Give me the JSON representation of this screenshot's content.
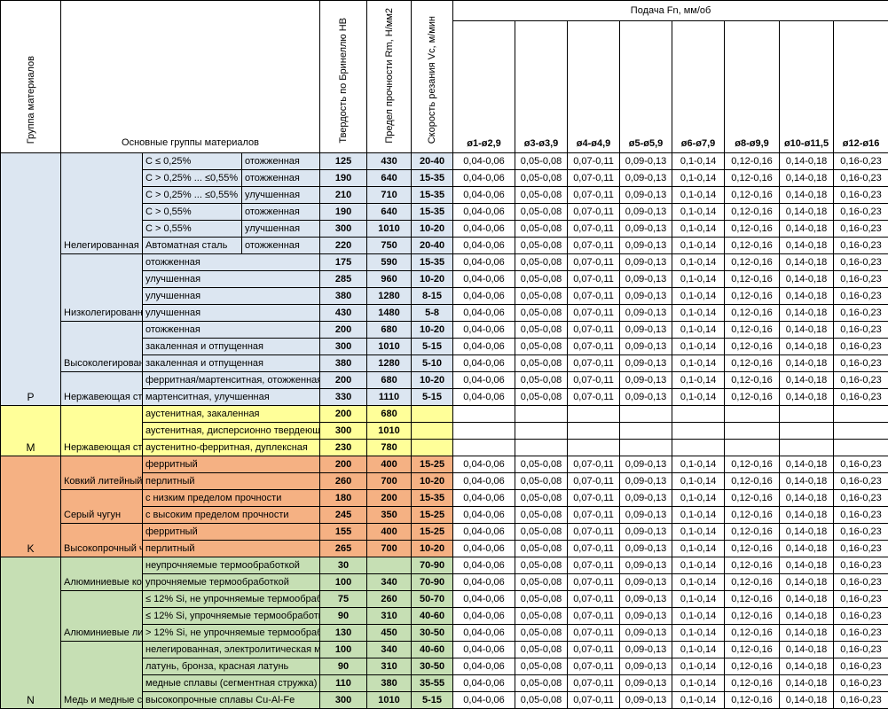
{
  "header": {
    "group_col": "Группа материалов",
    "main_groups": "Основные группы материалов",
    "hardness": "Твердость по Бринеллю HB",
    "strength": "Предел прочности Rm, Н/мм2",
    "speed": "Скорость резания Vc, м/мин",
    "feed": "Подача Fn, мм/об",
    "diameters": [
      "ø1-ø2,9",
      "ø3-ø3,9",
      "ø4-ø4,9",
      "ø5-ø5,9",
      "ø6-ø7,9",
      "ø8-ø9,9",
      "ø10-ø11,5",
      "ø12-ø16"
    ]
  },
  "colors": {
    "P": "#DCE6F1",
    "M": "#FFFF99",
    "K": "#F5B183",
    "N": "#C6DFB4",
    "white": "#FFFFFF",
    "border": "#000000"
  },
  "feed_values": [
    "0,04-0,06",
    "0,05-0,08",
    "0,07-0,11",
    "0,09-0,13",
    "0,1-0,14",
    "0,12-0,16",
    "0,14-0,18",
    "0,16-0,23"
  ],
  "sections": [
    {
      "letter": "P",
      "color_key": "P",
      "groups": [
        {
          "name": "Нелегированная с",
          "rows": [
            {
              "c": "C ≤ 0,25%",
              "d": "отожженная",
              "hb": "125",
              "rm": "430",
              "vc": "20-40"
            },
            {
              "c": "C > 0,25% ... ≤0,55%",
              "d": "отожженная",
              "hb": "190",
              "rm": "640",
              "vc": "15-35"
            },
            {
              "c": "C > 0,25% ... ≤0,55%",
              "d": "улучшенная",
              "hb": "210",
              "rm": "710",
              "vc": "15-35"
            },
            {
              "c": "C > 0,55%",
              "d": "отожженная",
              "hb": "190",
              "rm": "640",
              "vc": "15-35"
            },
            {
              "c": "C > 0,55%",
              "d": "улучшенная",
              "hb": "300",
              "rm": "1010",
              "vc": "10-20"
            },
            {
              "c": "Автоматная сталь",
              "d": "отожженная",
              "hb": "220",
              "rm": "750",
              "vc": "20-40"
            }
          ]
        },
        {
          "name": "Низколегированн",
          "rows": [
            {
              "cd": "отожженная",
              "hb": "175",
              "rm": "590",
              "vc": "15-35"
            },
            {
              "cd": "улучшенная",
              "hb": "285",
              "rm": "960",
              "vc": "10-20"
            },
            {
              "cd": "улучшенная",
              "hb": "380",
              "rm": "1280",
              "vc": "8-15"
            },
            {
              "cd": "улучшенная",
              "hb": "430",
              "rm": "1480",
              "vc": "5-8"
            }
          ]
        },
        {
          "name": "Высоколегирован",
          "rows": [
            {
              "cd": "отожженная",
              "hb": "200",
              "rm": "680",
              "vc": "10-20"
            },
            {
              "cd": "закаленная и отпущенная",
              "hb": "300",
              "rm": "1010",
              "vc": "5-15"
            },
            {
              "cd": "закаленная и отпущенная",
              "hb": "380",
              "rm": "1280",
              "vc": "5-10"
            }
          ]
        },
        {
          "name": "Нержавеющая ст",
          "rows": [
            {
              "cd": "ферритная/мартенситная, отожженная",
              "hb": "200",
              "rm": "680",
              "vc": "10-20"
            },
            {
              "cd": "мартенситная, улучшенная",
              "hb": "330",
              "rm": "1110",
              "vc": "5-15"
            }
          ]
        }
      ]
    },
    {
      "letter": "M",
      "color_key": "M",
      "groups": [
        {
          "name": "Нержавеющая ст",
          "rows": [
            {
              "cd": "аустенитная, закаленная",
              "hb": "200",
              "rm": "680",
              "vc": "",
              "feeds": false
            },
            {
              "cd": "аустенитная, дисперсионно твердеющая",
              "hb": "300",
              "rm": "1010",
              "vc": "",
              "feeds": false
            },
            {
              "cd": "аустенитно-ферритная, дуплексная",
              "hb": "230",
              "rm": "780",
              "vc": "",
              "feeds": false
            }
          ]
        }
      ]
    },
    {
      "letter": "K",
      "color_key": "K",
      "groups": [
        {
          "name": "Ковкий литейный",
          "rows": [
            {
              "cd": "ферритный",
              "hb": "200",
              "rm": "400",
              "vc": "15-25"
            },
            {
              "cd": "перлитный",
              "hb": "260",
              "rm": "700",
              "vc": "10-20"
            }
          ]
        },
        {
          "name": "Серый чугун",
          "rows": [
            {
              "cd": "с низким пределом прочности",
              "hb": "180",
              "rm": "200",
              "vc": "15-35"
            },
            {
              "cd": "с высоким пределом прочности",
              "hb": "245",
              "rm": "350",
              "vc": "15-25"
            }
          ]
        },
        {
          "name": "Высокопрочный ч",
          "rows": [
            {
              "cd": "ферритный",
              "hb": "155",
              "rm": "400",
              "vc": "15-25"
            },
            {
              "cd": "перлитный",
              "hb": "265",
              "rm": "700",
              "vc": "10-20"
            }
          ]
        }
      ]
    },
    {
      "letter": "N",
      "color_key": "N",
      "groups": [
        {
          "name": "Алюминиевые ко",
          "rows": [
            {
              "cd": "неупрочняемые термообработкой",
              "hb": "30",
              "rm": "",
              "vc": "70-90"
            },
            {
              "cd": "упрочняемые термообработкой",
              "hb": "100",
              "rm": "340",
              "vc": "70-90"
            }
          ]
        },
        {
          "name": "Алюминиевые ли",
          "rows": [
            {
              "cd": "≤ 12% Si, не упрочняемые термообработкой",
              "hb": "75",
              "rm": "260",
              "vc": "50-70"
            },
            {
              "cd": "≤ 12% Si, упрочняемые термообработкой",
              "hb": "90",
              "rm": "310",
              "vc": "40-60"
            },
            {
              "cd": "> 12% Si, не упрочняемые термообработкой",
              "hb": "130",
              "rm": "450",
              "vc": "30-50"
            }
          ]
        },
        {
          "name": "Медь и медные с",
          "rows": [
            {
              "cd": "нелегированная, электролитическая медь",
              "hb": "100",
              "rm": "340",
              "vc": "40-60"
            },
            {
              "cd": "латунь, бронза, красная латунь",
              "hb": "90",
              "rm": "310",
              "vc": "30-50"
            },
            {
              "cd": "медные сплавы (сегментная стружка)",
              "hb": "110",
              "rm": "380",
              "vc": "35-55"
            },
            {
              "cd": "высокопрочные сплавы Cu-Al-Fe",
              "hb": "300",
              "rm": "1010",
              "vc": "5-15"
            }
          ]
        }
      ]
    }
  ]
}
